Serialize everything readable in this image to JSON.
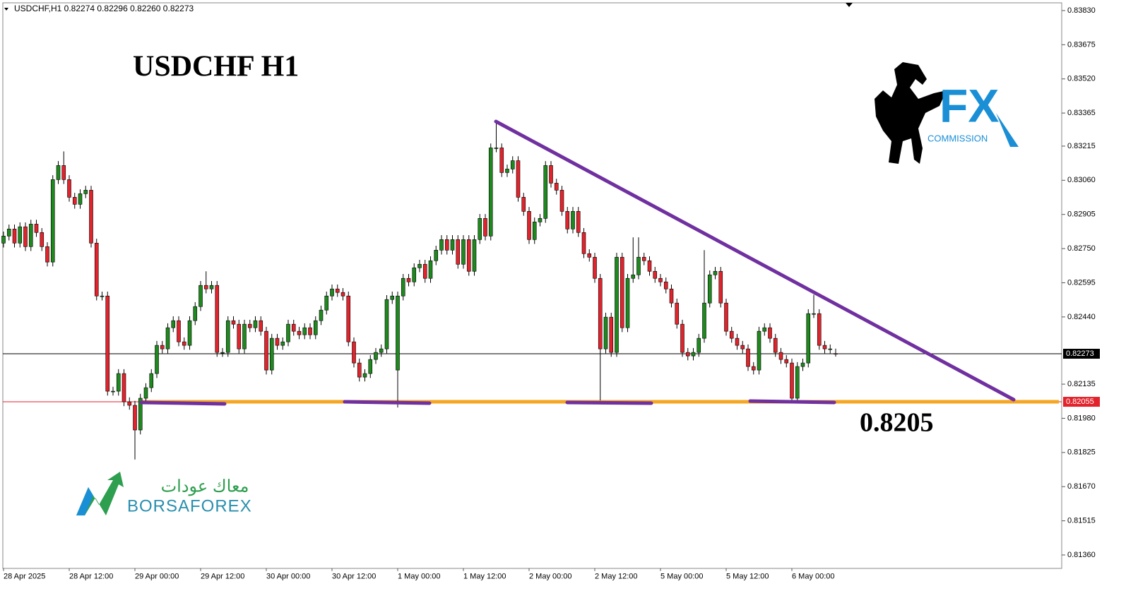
{
  "chart_data": {
    "type": "candlestick",
    "info": "USDCHF,H1  0.82274 0.82296 0.82260 0.82273",
    "title": "USDCHF   H1",
    "annotation": "0.8205",
    "logos": {
      "fx": "FX",
      "commission": "COMMISSION",
      "arabic": "معاك عودات",
      "borsa": "BORSAFOREX"
    },
    "bull_color": "#1e8a1e",
    "bear_color": "#e3232c",
    "grid": false,
    "ylim": [
      0.813,
      0.8386
    ],
    "yticks": [
      {
        "value": 0.8383,
        "label": "0.83830"
      },
      {
        "value": 0.83675,
        "label": "0.83675"
      },
      {
        "value": 0.8352,
        "label": "0.83520"
      },
      {
        "value": 0.83365,
        "label": "0.83365"
      },
      {
        "value": 0.83215,
        "label": "0.83215"
      },
      {
        "value": 0.8306,
        "label": "0.83060"
      },
      {
        "value": 0.82905,
        "label": "0.82905"
      },
      {
        "value": 0.8275,
        "label": "0.82750"
      },
      {
        "value": 0.82595,
        "label": "0.82595"
      },
      {
        "value": 0.8244,
        "label": "0.82440"
      },
      {
        "value": 0.82135,
        "label": "0.82135"
      },
      {
        "value": 0.8198,
        "label": "0.81980"
      },
      {
        "value": 0.81825,
        "label": "0.81825"
      },
      {
        "value": 0.8167,
        "label": "0.81670"
      },
      {
        "value": 0.81515,
        "label": "0.81515"
      },
      {
        "value": 0.8136,
        "label": "0.81360"
      }
    ],
    "last_price": {
      "value": 0.82273,
      "label": "0.82273",
      "color": "#000000"
    },
    "level": {
      "value": 0.82055,
      "label": "0.82055",
      "color": "#f5a623",
      "label_color": "#e3232c"
    },
    "categories": [
      "28 Apr 2025",
      null,
      null,
      null,
      null,
      null,
      null,
      null,
      null,
      null,
      null,
      null,
      "28 Apr 12:00",
      null,
      null,
      null,
      null,
      null,
      null,
      null,
      null,
      null,
      null,
      null,
      "29 Apr 00:00",
      null,
      null,
      null,
      null,
      null,
      null,
      null,
      null,
      null,
      null,
      null,
      "29 Apr 12:00",
      null,
      null,
      null,
      null,
      null,
      null,
      null,
      null,
      null,
      null,
      null,
      "30 Apr 00:00",
      null,
      null,
      null,
      null,
      null,
      null,
      null,
      null,
      null,
      null,
      null,
      "30 Apr 12:00",
      null,
      null,
      null,
      null,
      null,
      null,
      null,
      null,
      null,
      null,
      null,
      "1 May 00:00",
      null,
      null,
      null,
      null,
      null,
      null,
      null,
      null,
      null,
      null,
      null,
      "1 May 12:00",
      null,
      null,
      null,
      null,
      null,
      null,
      null,
      null,
      null,
      null,
      null,
      "2 May 00:00",
      null,
      null,
      null,
      null,
      null,
      null,
      null,
      null,
      null,
      null,
      null,
      "2 May 12:00",
      null,
      null,
      null,
      null,
      null,
      null,
      null,
      null,
      null,
      null,
      null,
      "5 May 00:00",
      null,
      null,
      null,
      null,
      null,
      null,
      null,
      null,
      null,
      null,
      null,
      "5 May 12:00",
      null,
      null,
      null,
      null,
      null,
      null,
      null,
      null,
      null,
      null,
      null,
      "6 May 00:00",
      null,
      null,
      null,
      null,
      null,
      null,
      null,
      null
    ],
    "open": [
      0.82775,
      0.82807,
      0.82839,
      0.82775,
      0.82849,
      0.82759,
      0.82861,
      0.82823,
      0.82759,
      0.82689,
      0.83063,
      0.83127,
      0.83063,
      0.82983,
      0.82951,
      0.82999,
      0.83015,
      0.82775,
      0.82535,
      0.82535,
      0.82103,
      0.82103,
      0.82183,
      0.82055,
      0.82039,
      0.81927,
      0.82071,
      0.82119,
      0.82183,
      0.82311,
      0.82295,
      0.82391,
      0.82423,
      0.82327,
      0.82311,
      0.82423,
      0.82487,
      0.82583,
      0.82567,
      0.82583,
      0.82279,
      0.82279,
      0.82423,
      0.82407,
      0.82295,
      0.82407,
      0.82391,
      0.82423,
      0.82375,
      0.82199,
      0.82343,
      0.82311,
      0.82327,
      0.82407,
      0.82375,
      0.82359,
      0.82391,
      0.82359,
      0.82423,
      0.82471,
      0.82535,
      0.82567,
      0.82551,
      0.82535,
      0.82327,
      0.82231,
      0.82167,
      0.82183,
      0.82247,
      0.82279,
      0.82295,
      0.82519,
      0.82199,
      0.82535,
      0.82615,
      0.82599,
      0.82663,
      0.82679,
      0.82615,
      0.82695,
      0.82743,
      0.82791,
      0.82743,
      0.82791,
      0.82679,
      0.82791,
      0.82647,
      0.82791,
      0.82887,
      0.82807,
      0.83207,
      0.83207,
      0.83095,
      0.83111,
      0.83149,
      0.82983,
      0.82919,
      0.82791,
      0.82871,
      0.82887,
      0.83127,
      0.83047,
      0.83015,
      0.82919,
      0.82839,
      0.82919,
      0.82823,
      0.82727,
      0.82711,
      0.82615,
      0.82295,
      0.82439,
      0.82279,
      0.82711,
      0.82391,
      0.82615,
      0.82631,
      0.82711,
      0.82695,
      0.82647,
      0.82615,
      0.82599,
      0.82567,
      0.82503,
      0.82407,
      0.82279,
      0.82263,
      0.82279,
      0.82343,
      0.82503,
      0.82631,
      0.82647,
      0.82503,
      0.82375,
      0.82343,
      0.82311,
      0.82295,
      0.82215,
      0.82199,
      0.82375,
      0.82391,
      0.82343,
      0.82279,
      0.82247,
      0.82231,
      0.82071,
      0.82215,
      0.82231,
      0.82455,
      0.82455,
      0.82311,
      0.82295,
      0.82274
    ],
    "high": [
      0.82827,
      0.82859,
      0.82859,
      0.82869,
      0.82869,
      0.82881,
      0.82881,
      0.82843,
      0.82779,
      0.83083,
      0.83147,
      0.83191,
      0.83083,
      0.83003,
      0.83019,
      0.83035,
      0.83035,
      0.82795,
      0.82555,
      0.82555,
      0.82123,
      0.82203,
      0.82203,
      0.82075,
      0.82059,
      0.82091,
      0.82139,
      0.82203,
      0.82331,
      0.82331,
      0.82411,
      0.82443,
      0.82443,
      0.82347,
      0.82443,
      0.82507,
      0.82603,
      0.82647,
      0.82603,
      0.82603,
      0.82299,
      0.82443,
      0.82443,
      0.82427,
      0.82427,
      0.82427,
      0.82443,
      0.82443,
      0.82395,
      0.82363,
      0.82363,
      0.82347,
      0.82427,
      0.82427,
      0.82395,
      0.82411,
      0.82411,
      0.82443,
      0.82491,
      0.82555,
      0.82587,
      0.82587,
      0.82571,
      0.82555,
      0.82347,
      0.82251,
      0.82203,
      0.82267,
      0.82299,
      0.82315,
      0.82539,
      0.82555,
      0.82555,
      0.82635,
      0.82635,
      0.82683,
      0.82699,
      0.82699,
      0.82715,
      0.82763,
      0.82811,
      0.82811,
      0.82811,
      0.82811,
      0.82811,
      0.82811,
      0.82811,
      0.82907,
      0.82907,
      0.83227,
      0.83329,
      0.83227,
      0.83131,
      0.83169,
      0.83169,
      0.83003,
      0.82939,
      0.82891,
      0.82907,
      0.83147,
      0.83147,
      0.83067,
      0.83035,
      0.82939,
      0.82939,
      0.82939,
      0.82843,
      0.82747,
      0.82731,
      0.82635,
      0.82459,
      0.82459,
      0.82731,
      0.82731,
      0.82635,
      0.82801,
      0.82801,
      0.82731,
      0.82715,
      0.82667,
      0.82635,
      0.82619,
      0.82587,
      0.82523,
      0.82427,
      0.82299,
      0.82299,
      0.82363,
      0.82743,
      0.82651,
      0.82667,
      0.82667,
      0.82523,
      0.82395,
      0.82363,
      0.82331,
      0.82315,
      0.82235,
      0.82395,
      0.82411,
      0.82411,
      0.82363,
      0.82299,
      0.82267,
      0.82251,
      0.82235,
      0.82251,
      0.82475,
      0.82541,
      0.82475,
      0.82331,
      0.82315,
      0.82296
    ],
    "low": [
      0.82755,
      0.82787,
      0.82755,
      0.82755,
      0.82739,
      0.82739,
      0.82803,
      0.82739,
      0.82669,
      0.82669,
      0.83043,
      0.83043,
      0.82963,
      0.82931,
      0.82931,
      0.82979,
      0.82755,
      0.82515,
      0.82515,
      0.82083,
      0.82083,
      0.82083,
      0.82035,
      0.82019,
      0.81793,
      0.81907,
      0.82051,
      0.82099,
      0.82163,
      0.82275,
      0.82275,
      0.82371,
      0.82307,
      0.82291,
      0.82291,
      0.82403,
      0.82467,
      0.82547,
      0.82547,
      0.82259,
      0.82259,
      0.82259,
      0.82387,
      0.82275,
      0.82275,
      0.82371,
      0.82371,
      0.82355,
      0.82179,
      0.82179,
      0.82291,
      0.82291,
      0.82307,
      0.82355,
      0.82339,
      0.82339,
      0.82339,
      0.82339,
      0.82403,
      0.82451,
      0.82515,
      0.82531,
      0.82515,
      0.82307,
      0.82211,
      0.82147,
      0.82147,
      0.82163,
      0.82227,
      0.82259,
      0.82275,
      0.82499,
      0.82029,
      0.82515,
      0.82579,
      0.82579,
      0.82643,
      0.82595,
      0.82595,
      0.82675,
      0.82723,
      0.82723,
      0.82723,
      0.82659,
      0.82659,
      0.82627,
      0.82627,
      0.82771,
      0.82787,
      0.82787,
      0.83187,
      0.83075,
      0.83075,
      0.83091,
      0.82963,
      0.82899,
      0.82771,
      0.82771,
      0.82851,
      0.82867,
      0.83027,
      0.82995,
      0.82899,
      0.82819,
      0.82819,
      0.82803,
      0.82707,
      0.82691,
      0.82595,
      0.82061,
      0.82275,
      0.82259,
      0.82259,
      0.82371,
      0.82371,
      0.82595,
      0.82611,
      0.82675,
      0.82627,
      0.82595,
      0.82579,
      0.82547,
      0.82483,
      0.82387,
      0.82259,
      0.82243,
      0.82243,
      0.82259,
      0.82323,
      0.82483,
      0.82611,
      0.82483,
      0.82355,
      0.82323,
      0.82291,
      0.82275,
      0.82195,
      0.82179,
      0.82179,
      0.82355,
      0.82323,
      0.82259,
      0.82227,
      0.82211,
      0.82055,
      0.82051,
      0.82195,
      0.82211,
      0.82435,
      0.82291,
      0.82275,
      0.82275,
      0.8226
    ],
    "close": [
      0.82807,
      0.82839,
      0.82775,
      0.82849,
      0.82759,
      0.82861,
      0.82823,
      0.82759,
      0.82689,
      0.83063,
      0.83127,
      0.83063,
      0.82983,
      0.82951,
      0.82999,
      0.83015,
      0.82775,
      0.82535,
      0.82535,
      0.82103,
      0.82103,
      0.82183,
      0.82055,
      0.82039,
      0.81927,
      0.82071,
      0.82119,
      0.82183,
      0.82311,
      0.82295,
      0.82391,
      0.82423,
      0.82327,
      0.82311,
      0.82423,
      0.82487,
      0.82583,
      0.82567,
      0.82583,
      0.82279,
      0.82279,
      0.82423,
      0.82407,
      0.82295,
      0.82407,
      0.82391,
      0.82423,
      0.82375,
      0.82199,
      0.82343,
      0.82311,
      0.82327,
      0.82407,
      0.82375,
      0.82359,
      0.82391,
      0.82359,
      0.82423,
      0.82471,
      0.82535,
      0.82567,
      0.82551,
      0.82535,
      0.82327,
      0.82231,
      0.82167,
      0.82183,
      0.82247,
      0.82279,
      0.82295,
      0.82519,
      0.82535,
      0.82535,
      0.82615,
      0.82599,
      0.82663,
      0.82679,
      0.82615,
      0.82695,
      0.82743,
      0.82791,
      0.82743,
      0.82791,
      0.82679,
      0.82791,
      0.82647,
      0.82791,
      0.82887,
      0.82807,
      0.83207,
      0.83207,
      0.83095,
      0.83111,
      0.83149,
      0.82983,
      0.82919,
      0.82791,
      0.82871,
      0.82887,
      0.83127,
      0.83047,
      0.83015,
      0.82919,
      0.82839,
      0.82919,
      0.82823,
      0.82727,
      0.82711,
      0.82615,
      0.82295,
      0.82439,
      0.82279,
      0.82711,
      0.82391,
      0.82615,
      0.82631,
      0.82711,
      0.82695,
      0.82647,
      0.82615,
      0.82599,
      0.82567,
      0.82503,
      0.82407,
      0.82279,
      0.82263,
      0.82279,
      0.82343,
      0.82503,
      0.82631,
      0.82647,
      0.82503,
      0.82375,
      0.82343,
      0.82311,
      0.82295,
      0.82215,
      0.82199,
      0.82375,
      0.82391,
      0.82343,
      0.82279,
      0.82247,
      0.82231,
      0.82071,
      0.82215,
      0.82231,
      0.82455,
      0.82455,
      0.82311,
      0.82295,
      0.82295,
      0.82273
    ]
  }
}
